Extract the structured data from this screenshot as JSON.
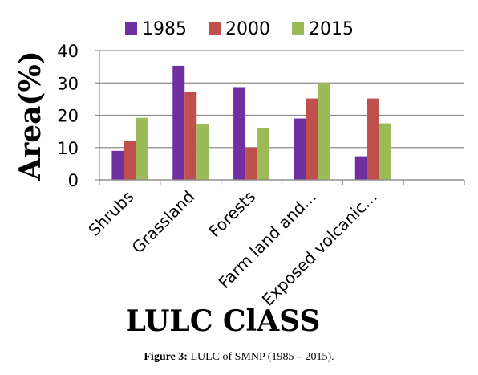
{
  "chart_data": {
    "type": "bar",
    "categories": [
      "Shrubs",
      "Grassland",
      "Forests",
      "Farm land and...",
      "Exposed volcanic...",
      ""
    ],
    "series": [
      {
        "name": "1985",
        "color": "#7030a0",
        "values": [
          9,
          35.3,
          28.7,
          19,
          7.3,
          null
        ]
      },
      {
        "name": "2000",
        "color": "#c0504d",
        "values": [
          12,
          27.3,
          10,
          25.2,
          25.2,
          null
        ]
      },
      {
        "name": "2015",
        "color": "#9bbb59",
        "values": [
          19.2,
          17.3,
          16,
          30,
          17.5,
          null
        ]
      }
    ],
    "ylim": [
      0,
      40
    ],
    "yticks": [
      "0",
      "10",
      "20",
      "30",
      "40"
    ],
    "ylabel": "Area(%)",
    "xlabel": "LULC ClASS",
    "legend_position": "top",
    "grid": true
  },
  "caption": {
    "lead": "Figure 3:",
    "text": " LULC of SMNP (1985 – 2015)."
  }
}
